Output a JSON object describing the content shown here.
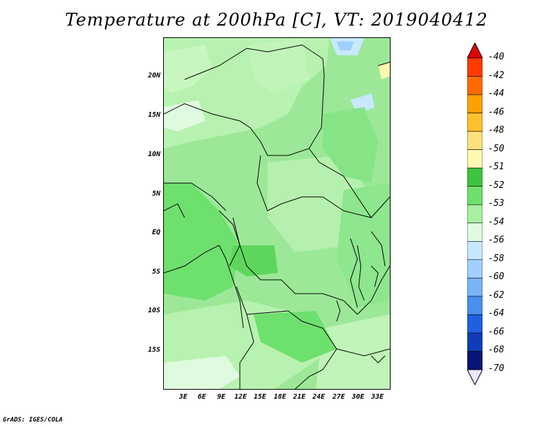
{
  "title": "Temperature at 200hPa [C], VT: 2019040412",
  "footer": "GrADS: IGES/COLA",
  "map": {
    "y_labels": [
      "20N",
      "15N",
      "10N",
      "5N",
      "EQ",
      "5S",
      "10S",
      "15S"
    ],
    "x_labels": [
      "3E",
      "6E",
      "9E",
      "12E",
      "15E",
      "18E",
      "21E",
      "24E",
      "27E",
      "30E",
      "33E"
    ]
  },
  "colorbar": {
    "labels": [
      "-40",
      "-42",
      "-44",
      "-46",
      "-48",
      "-50",
      "-51",
      "-52",
      "-53",
      "-54",
      "-56",
      "-58",
      "-60",
      "-62",
      "-64",
      "-66",
      "-68",
      "-70"
    ],
    "colors": [
      "#e00000",
      "#ff3b00",
      "#ff6a00",
      "#ffa000",
      "#ffc030",
      "#ffe080",
      "#fff8b0",
      "#3ec43e",
      "#6ee06e",
      "#a8f0a0",
      "#e0fae0",
      "#c8e8ff",
      "#a0d0ff",
      "#78b4f8",
      "#4a8ef0",
      "#2060e0",
      "#103cb8",
      "#0a1478",
      "#e8e8ff"
    ]
  }
}
